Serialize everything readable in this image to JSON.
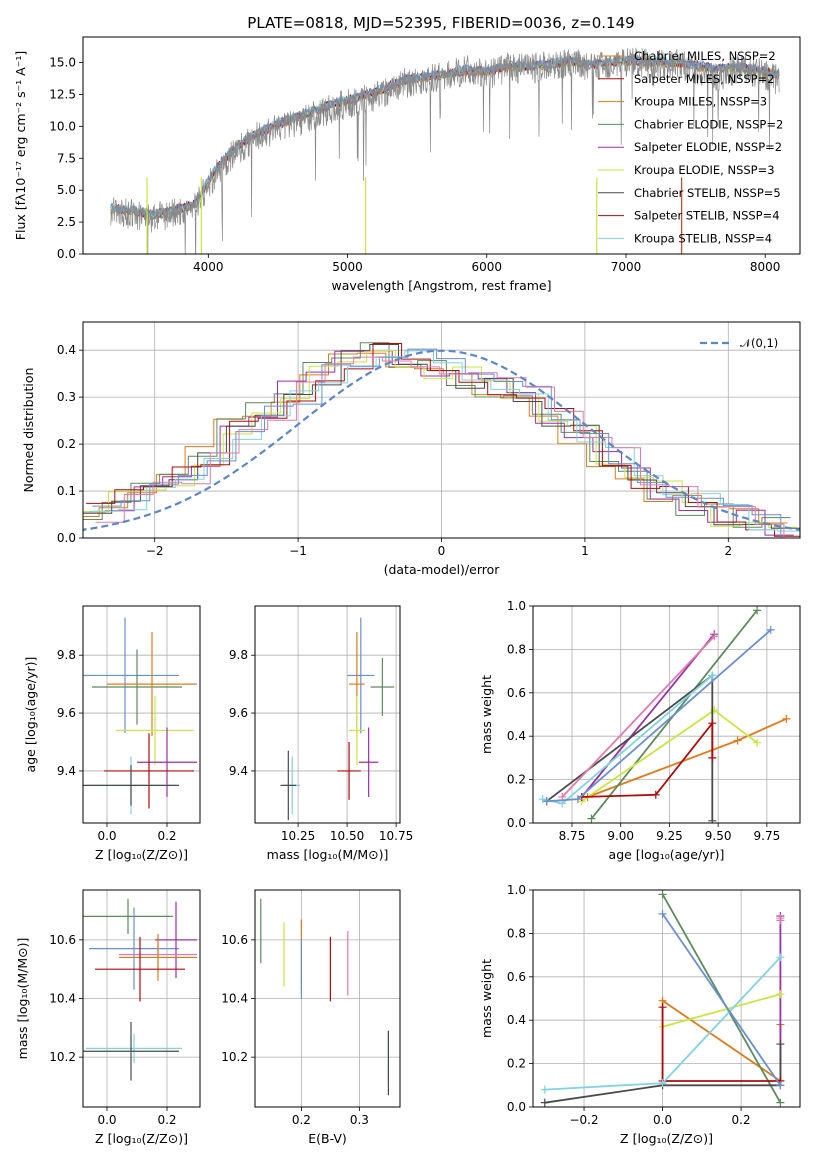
{
  "colors": [
    "#e07b1a",
    "#5c8b5c",
    "#9b2fa8",
    "#c9e63c",
    "#4a4a4a",
    "#b00b0b",
    "#7fd4e0",
    "#6a8fd0",
    "#e07bb0",
    "#8a8a8a",
    "#d04020"
  ],
  "chart_data": [
    {
      "id": "spectrum",
      "type": "line",
      "title": "PLATE=0818, MJD=52395, FIBERID=0036, z=0.149",
      "xlabel": "wavelength [Angstrom, rest frame]",
      "ylabel": "Flux [fλ10⁻¹⁷ erg cm⁻² s⁻¹ A⁻¹]",
      "xlim": [
        3100,
        8250
      ],
      "ylim": [
        0,
        17
      ],
      "xticks": [
        4000,
        5000,
        6000,
        7000,
        8000
      ],
      "yticks": [
        "0.0",
        "2.5",
        "5.0",
        "7.5",
        "10.0",
        "12.5",
        "15.0"
      ],
      "legend": {
        "placement": "top-right",
        "entries": [
          {
            "label": "Chabrier MILES, NSSP=2",
            "color": "#e07b1a"
          },
          {
            "label": "Salpeter MILES, NSSP=2",
            "color": "#b00b0b"
          },
          {
            "label": "Kroupa MILES, NSSP=3",
            "color": "#e07b1a"
          },
          {
            "label": "Chabrier ELODIE, NSSP=2",
            "color": "#5c8b5c"
          },
          {
            "label": "Salpeter ELODIE, NSSP=2",
            "color": "#9b2fa8"
          },
          {
            "label": "Kroupa ELODIE, NSSP=3",
            "color": "#c9e63c"
          },
          {
            "label": "Chabrier STELIB, NSSP=5",
            "color": "#4a4a4a"
          },
          {
            "label": "Salpeter STELIB, NSSP=4",
            "color": "#b00b0b"
          },
          {
            "label": "Kroupa STELIB, NSSP=4",
            "color": "#7fd4e0"
          }
        ]
      },
      "data_curve": {
        "color": "#8a8a8a",
        "x": [
          3300,
          3450,
          3600,
          3750,
          3900,
          4050,
          4200,
          4350,
          4500,
          4650,
          4800,
          4950,
          5100,
          5250,
          5400,
          5550,
          5700,
          5850,
          6000,
          6150,
          6300,
          6450,
          6600,
          6750,
          6900,
          7050,
          7200,
          7350,
          7500,
          7650,
          7800,
          7950,
          8100
        ],
        "y": [
          3.4,
          3.1,
          2.8,
          3.2,
          3.6,
          6.2,
          8.1,
          9.2,
          9.9,
          10.4,
          11.0,
          11.6,
          12.0,
          12.6,
          13.4,
          13.6,
          13.9,
          14.4,
          14.0,
          14.6,
          14.5,
          14.7,
          15.0,
          14.6,
          14.9,
          15.1,
          14.8,
          14.9,
          14.5,
          13.8,
          14.5,
          14.2,
          13.6
        ]
      },
      "model_curve": {
        "x": [
          3300,
          3450,
          3600,
          3750,
          3900,
          4050,
          4200,
          4350,
          4500,
          4650,
          4800,
          4950,
          5100,
          5250,
          5400,
          5550,
          5700,
          5850,
          6000,
          6150,
          6300,
          6450,
          6600,
          6750,
          6900,
          7050,
          7200,
          7350,
          7500,
          7650,
          7800,
          7950,
          8100
        ],
        "y": [
          3.5,
          3.3,
          3.0,
          3.3,
          3.8,
          6.5,
          8.3,
          9.4,
          10.1,
          10.7,
          11.3,
          11.8,
          12.3,
          12.8,
          13.5,
          13.8,
          14.0,
          14.3,
          14.2,
          14.6,
          14.6,
          14.8,
          15.0,
          14.8,
          15.0,
          15.1,
          15.0,
          14.9,
          14.7,
          14.4,
          14.6,
          14.3,
          14.0
        ]
      }
    },
    {
      "id": "residuals",
      "type": "line",
      "xlabel": "(data-model)/error",
      "ylabel": "Normed distribution",
      "xlim": [
        -2.5,
        2.5
      ],
      "ylim": [
        0,
        0.46
      ],
      "xticks": [
        "−2",
        "−1",
        "0",
        "1",
        "2"
      ],
      "yticks": [
        "0.0",
        "0.1",
        "0.2",
        "0.3",
        "0.4"
      ],
      "legend": {
        "placement": "top-right",
        "entries": [
          {
            "label": "𝒩(0,1)",
            "color": "#5b87c8"
          }
        ]
      },
      "hist_edges": [
        -2.5,
        -2.3,
        -2.1,
        -1.9,
        -1.7,
        -1.5,
        -1.3,
        -1.1,
        -0.9,
        -0.7,
        -0.5,
        -0.3,
        -0.1,
        0.1,
        0.3,
        0.5,
        0.7,
        0.9,
        1.1,
        1.3,
        1.5,
        1.7,
        1.9,
        2.1,
        2.3,
        2.5
      ],
      "hist_values": [
        0.05,
        0.08,
        0.1,
        0.13,
        0.17,
        0.23,
        0.27,
        0.31,
        0.35,
        0.38,
        0.4,
        0.38,
        0.36,
        0.34,
        0.32,
        0.3,
        0.26,
        0.22,
        0.17,
        0.13,
        0.1,
        0.07,
        0.05,
        0.04,
        0.02
      ]
    },
    {
      "id": "age-vs-z",
      "type": "scatter",
      "xlabel": "Z [log₁₀(Z/Z⊙)]",
      "ylabel": "age  [log₁₀(age/yr)]",
      "xlim": [
        -0.08,
        0.31
      ],
      "ylim": [
        9.22,
        9.97
      ],
      "xticks": [
        "0.0",
        "0.2"
      ],
      "yticks": [
        "9.4",
        "9.6",
        "9.8"
      ],
      "crosses": [
        {
          "x": 0.06,
          "y": 9.73,
          "xerr": 0.18,
          "yerr": 0.2,
          "color": "#6a8fd0"
        },
        {
          "x": 0.1,
          "y": 9.69,
          "xerr": 0.15,
          "yerr": 0.13,
          "color": "#5c8b5c"
        },
        {
          "x": 0.15,
          "y": 9.7,
          "xerr": 0.15,
          "yerr": 0.18,
          "color": "#e07b1a"
        },
        {
          "x": 0.16,
          "y": 9.54,
          "xerr": 0.13,
          "yerr": 0.12,
          "color": "#c9e63c"
        },
        {
          "x": 0.2,
          "y": 9.43,
          "xerr": 0.1,
          "yerr": 0.12,
          "color": "#9b2fa8"
        },
        {
          "x": 0.14,
          "y": 9.4,
          "xerr": 0.15,
          "yerr": 0.13,
          "color": "#b00b0b"
        },
        {
          "x": 0.08,
          "y": 9.35,
          "xerr": 0.15,
          "yerr": 0.1,
          "color": "#7fd4e0"
        },
        {
          "x": 0.08,
          "y": 9.35,
          "xerr": 0.16,
          "yerr": 0.07,
          "color": "#4a4a4a"
        }
      ]
    },
    {
      "id": "age-vs-mass",
      "type": "scatter",
      "xlabel": "mass [log₁₀(M/M⊙)]",
      "ylabel": "",
      "xlim": [
        10.03,
        10.77
      ],
      "ylim": [
        9.22,
        9.97
      ],
      "xticks": [
        "10.25",
        "10.50",
        "10.75"
      ],
      "yticks": [
        "9.4",
        "9.6",
        "9.8"
      ],
      "crosses": [
        {
          "x": 10.57,
          "y": 9.73,
          "xerr": 0.07,
          "yerr": 0.2,
          "color": "#6a8fd0"
        },
        {
          "x": 10.68,
          "y": 9.69,
          "xerr": 0.06,
          "yerr": 0.1,
          "color": "#5c8b5c"
        },
        {
          "x": 10.55,
          "y": 9.7,
          "xerr": 0.04,
          "yerr": 0.18,
          "color": "#e07b1a"
        },
        {
          "x": 10.55,
          "y": 9.54,
          "xerr": 0.04,
          "yerr": 0.12,
          "color": "#c9e63c"
        },
        {
          "x": 10.61,
          "y": 9.43,
          "xerr": 0.05,
          "yerr": 0.12,
          "color": "#9b2fa8"
        },
        {
          "x": 10.51,
          "y": 9.4,
          "xerr": 0.06,
          "yerr": 0.1,
          "color": "#b00b0b"
        },
        {
          "x": 10.22,
          "y": 9.35,
          "xerr": 0.04,
          "yerr": 0.1,
          "color": "#7fd4e0"
        },
        {
          "x": 10.2,
          "y": 9.35,
          "xerr": 0.04,
          "yerr": 0.12,
          "color": "#4a4a4a"
        }
      ]
    },
    {
      "id": "weight-vs-age",
      "type": "line",
      "xlabel": "age  [log₁₀(age/yr)]",
      "ylabel": "mass weight",
      "xlim": [
        8.55,
        9.92
      ],
      "ylim": [
        0,
        1.0
      ],
      "xticks": [
        "8.75",
        "9.00",
        "9.25",
        "9.50",
        "9.75"
      ],
      "yticks": [
        "0.0",
        "0.2",
        "0.4",
        "0.6",
        "0.8",
        "1.0"
      ],
      "series": [
        {
          "color": "#e07b1a",
          "x": [
            8.83,
            9.6,
            9.85
          ],
          "y": [
            0.12,
            0.38,
            0.48
          ]
        },
        {
          "color": "#5c8b5c",
          "x": [
            8.85,
            9.7
          ],
          "y": [
            0.02,
            0.98
          ]
        },
        {
          "color": "#9b2fa8",
          "x": [
            8.8,
            9.48
          ],
          "y": [
            0.12,
            0.87
          ]
        },
        {
          "color": "#c9e63c",
          "x": [
            8.8,
            9.48,
            9.7
          ],
          "y": [
            0.1,
            0.52,
            0.37
          ]
        },
        {
          "color": "#4a4a4a",
          "x": [
            8.62,
            9.47,
            9.47
          ],
          "y": [
            0.1,
            0.68,
            0.01
          ]
        },
        {
          "color": "#b00b0b",
          "x": [
            8.8,
            9.18,
            9.47,
            9.47
          ],
          "y": [
            0.12,
            0.13,
            0.46,
            0.3
          ]
        },
        {
          "color": "#7fd4e0",
          "x": [
            8.6,
            8.7,
            9.47
          ],
          "y": [
            0.11,
            0.09,
            0.68
          ]
        },
        {
          "color": "#6a8fd0",
          "x": [
            8.62,
            8.78,
            9.77
          ],
          "y": [
            0.1,
            0.11,
            0.89
          ]
        },
        {
          "color": "#e07bb0",
          "x": [
            8.7,
            9.48
          ],
          "y": [
            0.12,
            0.86
          ]
        }
      ]
    },
    {
      "id": "mass-vs-z",
      "type": "scatter",
      "xlabel": "Z [log₁₀(Z/Z⊙)]",
      "ylabel": "mass [log₁₀(M/M⊙)]",
      "xlim": [
        -0.08,
        0.31
      ],
      "ylim": [
        10.03,
        10.77
      ],
      "xticks": [
        "0.0",
        "0.2"
      ],
      "yticks": [
        "10.2",
        "10.4",
        "10.6"
      ],
      "crosses": [
        {
          "x": 0.07,
          "y": 10.68,
          "xerr": 0.15,
          "yerr": 0.06,
          "color": "#5c8b5c"
        },
        {
          "x": 0.09,
          "y": 10.57,
          "xerr": 0.15,
          "yerr": 0.14,
          "color": "#6a8fd0"
        },
        {
          "x": 0.23,
          "y": 10.6,
          "xerr": 0.07,
          "yerr": 0.13,
          "color": "#9b2fa8"
        },
        {
          "x": 0.17,
          "y": 10.55,
          "xerr": 0.13,
          "yerr": 0.06,
          "color": "#e07bb0"
        },
        {
          "x": 0.17,
          "y": 10.54,
          "xerr": 0.13,
          "yerr": 0.08,
          "color": "#e07b1a"
        },
        {
          "x": 0.11,
          "y": 10.5,
          "xerr": 0.15,
          "yerr": 0.11,
          "color": "#b00b0b"
        },
        {
          "x": 0.09,
          "y": 10.23,
          "xerr": 0.16,
          "yerr": 0.05,
          "color": "#7fd4e0"
        },
        {
          "x": 0.08,
          "y": 10.22,
          "xerr": 0.16,
          "yerr": 0.1,
          "color": "#4a4a4a"
        }
      ]
    },
    {
      "id": "mass-vs-ebv",
      "type": "scatter",
      "xlabel": "E(B-V)",
      "ylabel": "",
      "xlim": [
        0.12,
        0.37
      ],
      "ylim": [
        10.03,
        10.77
      ],
      "xticks": [
        "0.2",
        "0.3"
      ],
      "yticks": [
        "10.2",
        "10.4",
        "10.6"
      ],
      "crosses": [
        {
          "x": 0.13,
          "y": 10.63,
          "xerr": 0,
          "yerr": 0.11,
          "color": "#5c8b5c"
        },
        {
          "x": 0.17,
          "y": 10.55,
          "xerr": 0,
          "yerr": 0.11,
          "color": "#c9e63c"
        },
        {
          "x": 0.2,
          "y": 10.55,
          "xerr": 0,
          "yerr": 0.12,
          "color": "#e07b1a"
        },
        {
          "x": 0.2,
          "y": 10.5,
          "xerr": 0,
          "yerr": 0.1,
          "color": "#6a8fd0"
        },
        {
          "x": 0.25,
          "y": 10.5,
          "xerr": 0,
          "yerr": 0.11,
          "color": "#b00b0b"
        },
        {
          "x": 0.28,
          "y": 10.52,
          "xerr": 0,
          "yerr": 0.11,
          "color": "#e07bb0"
        },
        {
          "x": 0.35,
          "y": 10.2,
          "xerr": 0,
          "yerr": 0.09,
          "color": "#7fd4e0"
        },
        {
          "x": 0.35,
          "y": 10.18,
          "xerr": 0,
          "yerr": 0.11,
          "color": "#4a4a4a"
        }
      ]
    },
    {
      "id": "weight-vs-z",
      "type": "line",
      "xlabel": "Z [log₁₀(Z/Z⊙)]",
      "ylabel": "mass weight",
      "xlim": [
        -0.33,
        0.35
      ],
      "ylim": [
        0,
        1.0
      ],
      "xticks": [
        "−0.2",
        "0.0",
        "0.2"
      ],
      "yticks": [
        "0.0",
        "0.2",
        "0.4",
        "0.6",
        "0.8",
        "1.0"
      ],
      "series": [
        {
          "color": "#e07b1a",
          "x": [
            0.0,
            0.0,
            0.3,
            0.3
          ],
          "y": [
            0.11,
            0.49,
            0.12,
            0.38
          ]
        },
        {
          "color": "#5c8b5c",
          "x": [
            0.0,
            0.3
          ],
          "y": [
            0.98,
            0.02
          ]
        },
        {
          "color": "#9b2fa8",
          "x": [
            0.3,
            0.3
          ],
          "y": [
            0.88,
            0.12
          ]
        },
        {
          "color": "#c9e63c",
          "x": [
            0.0,
            0.3
          ],
          "y": [
            0.37,
            0.52
          ]
        },
        {
          "color": "#4a4a4a",
          "x": [
            -0.3,
            0.0,
            0.3,
            0.3
          ],
          "y": [
            0.02,
            0.1,
            0.1,
            0.29
          ]
        },
        {
          "color": "#b00b0b",
          "x": [
            0.0,
            0.0,
            0.3
          ],
          "y": [
            0.46,
            0.12,
            0.12
          ]
        },
        {
          "color": "#7fd4e0",
          "x": [
            -0.3,
            0.0,
            0.3
          ],
          "y": [
            0.08,
            0.11,
            0.69
          ]
        },
        {
          "color": "#6a8fd0",
          "x": [
            0.0,
            0.3
          ],
          "y": [
            0.89,
            0.1
          ]
        },
        {
          "color": "#e07bb0",
          "x": [
            0.3,
            0.3
          ],
          "y": [
            0.86,
            0.87
          ]
        }
      ]
    }
  ]
}
